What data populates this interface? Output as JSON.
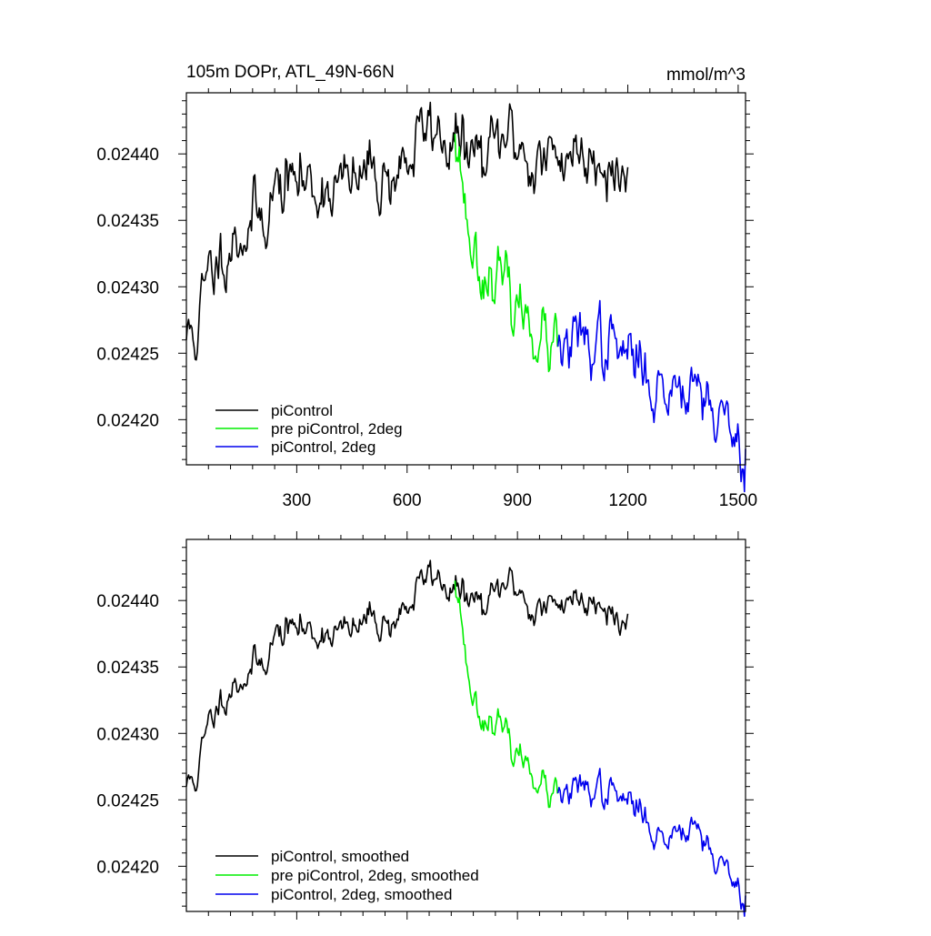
{
  "chart_data": [
    {
      "type": "line",
      "title": "105m DOPr, ATL_49N-66N",
      "units": "mmol/m^3",
      "xlabel": "",
      "ylabel": "",
      "xlim": [
        0,
        1520
      ],
      "ylim": [
        0.024166,
        0.024446
      ],
      "x_ticks": [
        300,
        600,
        900,
        1200,
        1500
      ],
      "y_ticks": [
        0.0242,
        0.02425,
        0.0243,
        0.02435,
        0.0244
      ],
      "y_tick_labels": [
        "0.02420",
        "0.02425",
        "0.02430",
        "0.02435",
        "0.02440"
      ],
      "legend_position": "bottom-left",
      "series": [
        {
          "name": "piControl",
          "color": "#000000",
          "x_range": [
            0,
            1200
          ],
          "anchors": [
            [
              0,
              0.02426
            ],
            [
              30,
              0.02427
            ],
            [
              60,
              0.024305
            ],
            [
              100,
              0.02433
            ],
            [
              150,
              0.024342
            ],
            [
              200,
              0.024352
            ],
            [
              250,
              0.024376
            ],
            [
              300,
              0.02438
            ],
            [
              340,
              0.024375
            ],
            [
              400,
              0.024378
            ],
            [
              450,
              0.024375
            ],
            [
              500,
              0.024388
            ],
            [
              550,
              0.024382
            ],
            [
              600,
              0.024395
            ],
            [
              640,
              0.024412
            ],
            [
              660,
              0.024422
            ],
            [
              700,
              0.024414
            ],
            [
              740,
              0.024405
            ],
            [
              780,
              0.0244
            ],
            [
              820,
              0.024394
            ],
            [
              860,
              0.024412
            ],
            [
              900,
              0.024412
            ],
            [
              940,
              0.024392
            ],
            [
              1000,
              0.024395
            ],
            [
              1040,
              0.024405
            ],
            [
              1080,
              0.024398
            ],
            [
              1120,
              0.024405
            ],
            [
              1160,
              0.024395
            ],
            [
              1180,
              0.024375
            ],
            [
              1200,
              0.02439
            ]
          ],
          "noise": 1.7e-05,
          "seed": 11
        },
        {
          "name": "pre piControl, 2deg",
          "color": "#00ee00",
          "x_range": [
            730,
            1010
          ],
          "anchors": [
            [
              730,
              0.024415
            ],
            [
              745,
              0.024395
            ],
            [
              760,
              0.024355
            ],
            [
              780,
              0.024325
            ],
            [
              810,
              0.024312
            ],
            [
              840,
              0.02431
            ],
            [
              870,
              0.024295
            ],
            [
              900,
              0.024283
            ],
            [
              930,
              0.024278
            ],
            [
              960,
              0.024265
            ],
            [
              990,
              0.02425
            ],
            [
              1010,
              0.024255
            ]
          ],
          "noise": 1.5e-05,
          "seed": 23
        },
        {
          "name": "piControl, 2deg",
          "color": "#0000ee",
          "x_range": [
            1010,
            1520
          ],
          "anchors": [
            [
              1010,
              0.024255
            ],
            [
              1050,
              0.024255
            ],
            [
              1100,
              0.02426
            ],
            [
              1150,
              0.024255
            ],
            [
              1200,
              0.024248
            ],
            [
              1250,
              0.024238
            ],
            [
              1290,
              0.024218
            ],
            [
              1320,
              0.024225
            ],
            [
              1350,
              0.024232
            ],
            [
              1380,
              0.024235
            ],
            [
              1410,
              0.02422
            ],
            [
              1440,
              0.024205
            ],
            [
              1480,
              0.024192
            ],
            [
              1520,
              0.024178
            ]
          ],
          "noise": 1.6e-05,
          "seed": 37
        }
      ]
    },
    {
      "type": "line",
      "title": "",
      "xlabel": "",
      "ylabel": "",
      "xlim": [
        0,
        1520
      ],
      "ylim": [
        0.024166,
        0.024446
      ],
      "x_ticks": [
        300,
        600,
        900,
        1200,
        1500
      ],
      "y_ticks": [
        0.0242,
        0.02425,
        0.0243,
        0.02435,
        0.0244
      ],
      "y_tick_labels": [
        "0.02420",
        "0.02425",
        "0.02430",
        "0.02435",
        "0.02440"
      ],
      "legend_position": "bottom-left",
      "series": [
        {
          "name": "piControl, smoothed",
          "color": "#000000",
          "x_range": [
            0,
            1200
          ],
          "anchors": [
            [
              0,
              0.02426
            ],
            [
              30,
              0.02427
            ],
            [
              60,
              0.024305
            ],
            [
              100,
              0.02433
            ],
            [
              150,
              0.024342
            ],
            [
              200,
              0.024352
            ],
            [
              250,
              0.024376
            ],
            [
              300,
              0.02438
            ],
            [
              340,
              0.024375
            ],
            [
              400,
              0.024378
            ],
            [
              450,
              0.024375
            ],
            [
              500,
              0.024388
            ],
            [
              550,
              0.024382
            ],
            [
              600,
              0.024395
            ],
            [
              640,
              0.024412
            ],
            [
              660,
              0.024422
            ],
            [
              700,
              0.024414
            ],
            [
              740,
              0.024405
            ],
            [
              780,
              0.0244
            ],
            [
              820,
              0.024394
            ],
            [
              860,
              0.024412
            ],
            [
              900,
              0.024412
            ],
            [
              940,
              0.024392
            ],
            [
              1000,
              0.024395
            ],
            [
              1040,
              0.024405
            ],
            [
              1080,
              0.024398
            ],
            [
              1120,
              0.024405
            ],
            [
              1160,
              0.024395
            ],
            [
              1180,
              0.024375
            ],
            [
              1200,
              0.02439
            ]
          ],
          "noise": 8.5e-06,
          "seed": 11
        },
        {
          "name": "pre piControl, 2deg, smoothed",
          "color": "#00ee00",
          "x_range": [
            730,
            1010
          ],
          "anchors": [
            [
              730,
              0.024415
            ],
            [
              745,
              0.024395
            ],
            [
              760,
              0.024355
            ],
            [
              780,
              0.024325
            ],
            [
              810,
              0.024312
            ],
            [
              840,
              0.02431
            ],
            [
              870,
              0.024295
            ],
            [
              900,
              0.024283
            ],
            [
              930,
              0.024278
            ],
            [
              960,
              0.024265
            ],
            [
              990,
              0.02425
            ],
            [
              1010,
              0.024255
            ]
          ],
          "noise": 7.5e-06,
          "seed": 23
        },
        {
          "name": "piControl, 2deg, smoothed",
          "color": "#0000ee",
          "x_range": [
            1010,
            1520
          ],
          "anchors": [
            [
              1010,
              0.024255
            ],
            [
              1050,
              0.024255
            ],
            [
              1100,
              0.02426
            ],
            [
              1150,
              0.024255
            ],
            [
              1200,
              0.024248
            ],
            [
              1250,
              0.024238
            ],
            [
              1290,
              0.024218
            ],
            [
              1320,
              0.024225
            ],
            [
              1350,
              0.024232
            ],
            [
              1380,
              0.024235
            ],
            [
              1410,
              0.02422
            ],
            [
              1440,
              0.024205
            ],
            [
              1480,
              0.024192
            ],
            [
              1520,
              0.024178
            ]
          ],
          "noise": 8e-06,
          "seed": 37
        }
      ]
    }
  ]
}
